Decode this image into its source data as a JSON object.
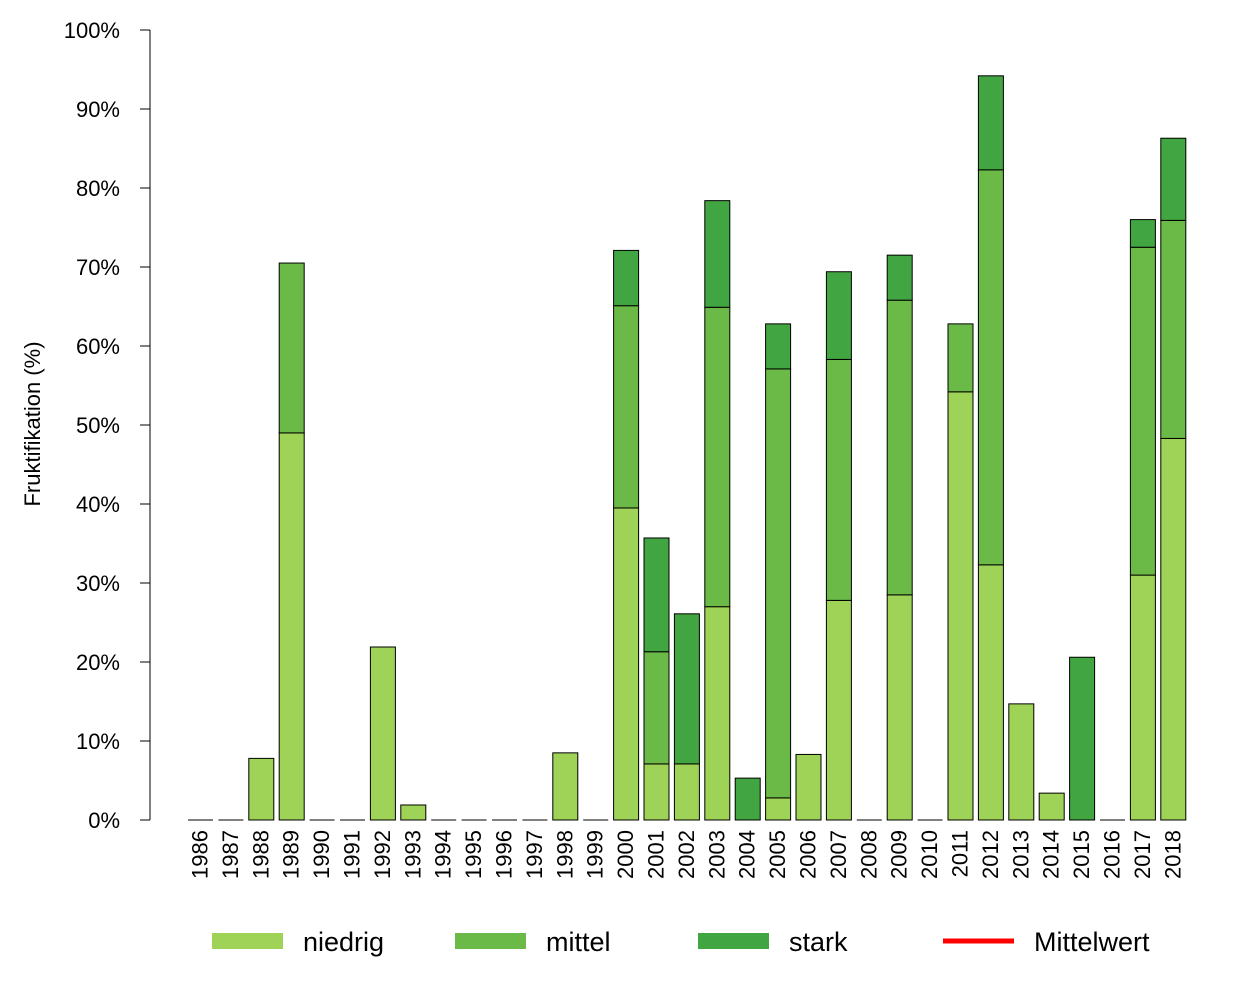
{
  "chart_data": {
    "type": "bar",
    "stacked": true,
    "ylabel": "Fruktifikation (%)",
    "ylim": [
      0,
      100
    ],
    "y_tick_format": "percent",
    "y_ticks": [
      "0%",
      "10%",
      "20%",
      "30%",
      "40%",
      "50%",
      "60%",
      "70%",
      "80%",
      "90%",
      "100%"
    ],
    "categories": [
      "1986",
      "1987",
      "1988",
      "1989",
      "1990",
      "1991",
      "1992",
      "1993",
      "1994",
      "1995",
      "1996",
      "1997",
      "1998",
      "1999",
      "2000",
      "2001",
      "2002",
      "2003",
      "2004",
      "2005",
      "2006",
      "2007",
      "2008",
      "2009",
      "2010",
      "2011",
      "2012",
      "2013",
      "2014",
      "2015",
      "2016",
      "2017",
      "2018"
    ],
    "series": [
      {
        "name": "niedrig",
        "color": "#9ed357",
        "values": [
          0,
          0,
          7.8,
          49.0,
          0,
          0,
          21.9,
          1.9,
          0,
          0,
          0,
          0,
          8.5,
          0,
          39.5,
          7.1,
          7.1,
          27.0,
          0,
          2.8,
          8.3,
          27.8,
          0,
          28.5,
          0,
          54.2,
          32.3,
          14.7,
          3.4,
          0,
          0,
          31.0,
          48.3
        ]
      },
      {
        "name": "mittel",
        "color": "#6bba47",
        "values": [
          0,
          0,
          0,
          21.5,
          0,
          0,
          0,
          0,
          0,
          0,
          0,
          0,
          0,
          0,
          25.6,
          14.2,
          0,
          37.9,
          0,
          54.3,
          0,
          30.5,
          0,
          37.3,
          0,
          8.6,
          50.0,
          0,
          0,
          0,
          0,
          41.5,
          27.6
        ]
      },
      {
        "name": "stark",
        "color": "#41a541",
        "values": [
          0,
          0,
          0,
          0,
          0,
          0,
          0,
          0,
          0,
          0,
          0,
          0,
          0,
          0,
          7.0,
          14.4,
          19.0,
          13.5,
          5.3,
          5.7,
          0,
          11.1,
          0,
          5.7,
          0,
          0,
          11.9,
          0,
          0,
          20.6,
          0,
          3.5,
          10.4
        ]
      }
    ],
    "mean_line": {
      "name": "Mittelwert",
      "color": "#ff0000"
    },
    "legend_position": "bottom",
    "grid": false
  }
}
